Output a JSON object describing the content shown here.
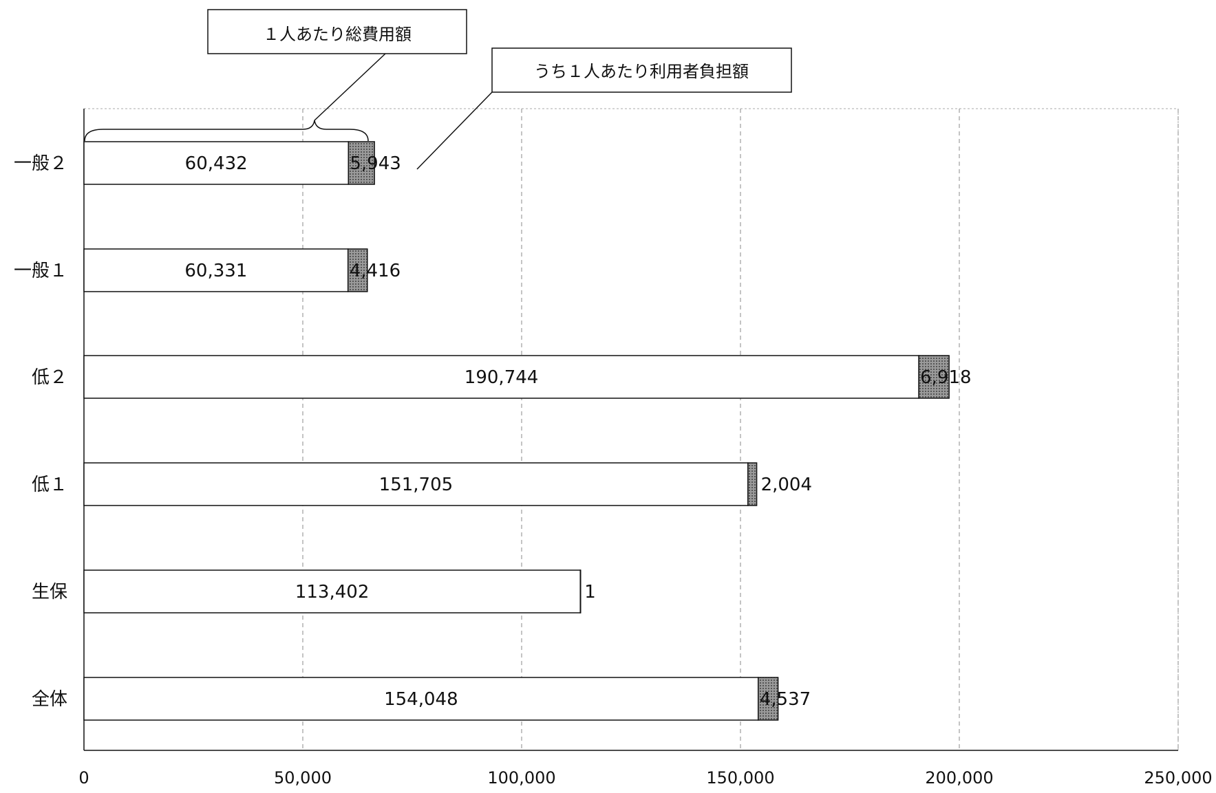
{
  "chart_data": {
    "type": "bar",
    "orientation": "horizontal",
    "stacked": true,
    "categories": [
      "一般２",
      "一般１",
      "低２",
      "低１",
      "生保",
      "全体"
    ],
    "series": [
      {
        "name": "",
        "values": [
          60432,
          60331,
          190744,
          151705,
          113402,
          154048
        ],
        "labels": [
          "60,432",
          "60,331",
          "190,744",
          "151,705",
          "113,402",
          "154,048"
        ]
      },
      {
        "name": "",
        "values": [
          5943,
          4416,
          6918,
          2004,
          1,
          4537
        ],
        "labels": [
          "5,943",
          "4,416",
          "6,918",
          "2,004",
          "1",
          "4,537"
        ]
      }
    ],
    "xlim": [
      0,
      250000
    ],
    "xticks": [
      0,
      50000,
      100000,
      150000,
      200000,
      250000
    ],
    "xtick_labels": [
      "0",
      "50,000",
      "100,000",
      "150,000",
      "200,000",
      "250,000"
    ],
    "grid": true,
    "annotations": {
      "total_label": "１人あたり総費用額",
      "burden_label": "うち１人あたり利用者負担額"
    },
    "colors": {
      "base_fill": "#ffffff",
      "burden_fill": "#8a8a8a",
      "bar_stroke": "#111111",
      "grid": "#888888"
    }
  }
}
